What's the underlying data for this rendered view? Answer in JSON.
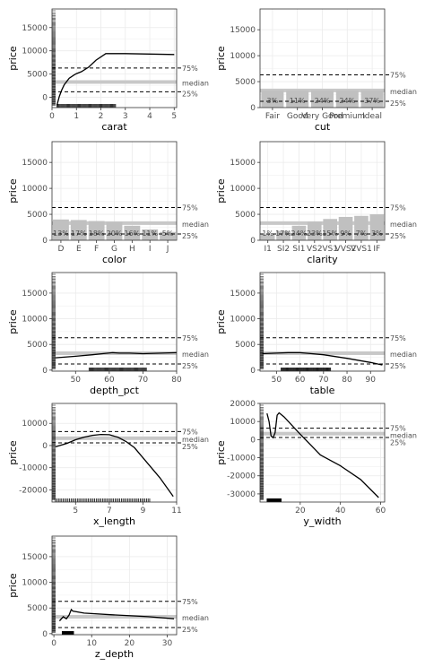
{
  "colors": {
    "panel_border": "#333333",
    "grid": "#ebebeb",
    "bar": "#c0c0c0",
    "median_band": "#c8c8c8",
    "line": "#000000"
  },
  "chart_data": [
    {
      "id": "carat",
      "type": "line",
      "xlabel": "carat",
      "ylabel": "price",
      "xlim": [
        0,
        5.1
      ],
      "ylim": [
        -2200,
        19000
      ],
      "xticks": [
        0,
        1,
        2,
        3,
        4,
        5
      ],
      "yticks": [
        0,
        5000,
        10000,
        15000
      ],
      "x": [
        0.2,
        0.3,
        0.4,
        0.5,
        0.7,
        0.9,
        1.0,
        1.2,
        1.5,
        1.8,
        2.2,
        3.0,
        4.0,
        5.0
      ],
      "y": [
        -1700,
        200,
        1600,
        2700,
        4100,
        4800,
        5100,
        5500,
        6500,
        8000,
        9400,
        9400,
        9300,
        9200
      ],
      "ref": {
        "p75": 6300,
        "median": 3300,
        "p25": 1200
      },
      "rug_y": true,
      "rug_x": [
        0.2,
        2.6
      ]
    },
    {
      "id": "cut",
      "type": "bar",
      "xlabel": "cut",
      "ylabel": "price",
      "ylim": [
        0,
        19000
      ],
      "yticks": [
        0,
        5000,
        10000,
        15000
      ],
      "categories": [
        "Fair",
        "Good",
        "Very Good",
        "Premium",
        "Ideal"
      ],
      "values": [
        3300,
        3300,
        3300,
        3300,
        3300
      ],
      "bar_labels": [
        "3%",
        "11%",
        "24%",
        "24%",
        "37%"
      ],
      "ref": {
        "p75": 6300,
        "median": 3300,
        "p25": 1200
      }
    },
    {
      "id": "color",
      "type": "bar",
      "xlabel": "color",
      "ylabel": "price",
      "ylim": [
        0,
        19000
      ],
      "yticks": [
        0,
        5000,
        10000,
        15000
      ],
      "categories": [
        "D",
        "E",
        "F",
        "G",
        "H",
        "I",
        "J"
      ],
      "values": [
        4000,
        3900,
        3700,
        3500,
        2800,
        2100,
        1600
      ],
      "bar_labels": [
        "13%",
        "17%",
        "18%",
        "20%",
        "16%",
        "11%",
        "5%"
      ],
      "ref": {
        "p75": 6300,
        "median": 3300,
        "p25": 1200
      }
    },
    {
      "id": "clarity",
      "type": "bar",
      "xlabel": "clarity",
      "ylabel": "price",
      "ylim": [
        0,
        19000
      ],
      "yticks": [
        0,
        5000,
        10000,
        15000
      ],
      "categories": [
        "I1",
        "SI2",
        "SI1",
        "VS2",
        "VS1",
        "VVS2",
        "VVS1",
        "IF"
      ],
      "values": [
        1100,
        1800,
        2800,
        3600,
        4100,
        4500,
        4700,
        5000
      ],
      "bar_labels": [
        "1%",
        "17%",
        "24%",
        "23%",
        "15%",
        "9%",
        "7%",
        "3%"
      ],
      "ref": {
        "p75": 6300,
        "median": 3300,
        "p25": 1200
      }
    },
    {
      "id": "depth_pct",
      "type": "line",
      "xlabel": "depth_pct",
      "ylabel": "price",
      "xlim": [
        43,
        80
      ],
      "ylim": [
        -200,
        19000
      ],
      "xticks": [
        50,
        60,
        70,
        80
      ],
      "yticks": [
        0,
        5000,
        10000,
        15000
      ],
      "x": [
        44,
        50,
        55,
        58,
        61,
        63,
        66,
        70,
        80
      ],
      "y": [
        2400,
        2700,
        3000,
        3200,
        3400,
        3300,
        3300,
        3200,
        3400
      ],
      "ref": {
        "p75": 6300,
        "median": 3300,
        "p25": 1200
      },
      "rug_y": true,
      "rug_x": [
        54,
        71
      ]
    },
    {
      "id": "table",
      "type": "line",
      "xlabel": "table",
      "ylabel": "price",
      "xlim": [
        43,
        96
      ],
      "ylim": [
        -200,
        19000
      ],
      "xticks": [
        50,
        60,
        70,
        80,
        90
      ],
      "yticks": [
        0,
        5000,
        10000,
        15000
      ],
      "x": [
        44,
        50,
        55,
        60,
        65,
        70,
        80,
        90,
        95
      ],
      "y": [
        3200,
        3300,
        3400,
        3400,
        3200,
        3000,
        2300,
        1500,
        1000
      ],
      "ref": {
        "p75": 6300,
        "median": 3300,
        "p25": 1200
      },
      "rug_y": true,
      "rug_x": [
        52,
        73
      ]
    },
    {
      "id": "x_length",
      "type": "line",
      "xlabel": "x_length",
      "ylabel": "price",
      "xlim": [
        3.6,
        11
      ],
      "ylim": [
        -25500,
        19000
      ],
      "xticks": [
        5,
        7,
        9,
        11
      ],
      "yticks": [
        -20000,
        -10000,
        0,
        10000
      ],
      "x": [
        3.8,
        4.5,
        5.0,
        5.5,
        6.0,
        6.5,
        7.0,
        7.5,
        8.0,
        8.5,
        9.0,
        10.0,
        10.8
      ],
      "y": [
        -600,
        1000,
        2600,
        3800,
        4600,
        5000,
        4900,
        3800,
        1800,
        -1000,
        -5500,
        -14500,
        -23000
      ],
      "ref": {
        "p75": 6300,
        "median": 3300,
        "p25": 1200
      },
      "rug_y": true,
      "rug_x": [
        3.8,
        9.4
      ]
    },
    {
      "id": "y_width",
      "type": "line",
      "xlabel": "y_width",
      "ylabel": "price",
      "xlim": [
        0,
        62
      ],
      "ylim": [
        -34500,
        20000
      ],
      "xticks": [
        20,
        40,
        60
      ],
      "yticks": [
        -30000,
        -20000,
        -10000,
        0,
        10000,
        20000
      ],
      "x": [
        3.5,
        4.5,
        5.5,
        6.5,
        7.5,
        8.5,
        9.5,
        12,
        20,
        30,
        40,
        50,
        59
      ],
      "y": [
        14500,
        10000,
        2000,
        1000,
        3800,
        13500,
        14800,
        12500,
        3000,
        -8500,
        -14500,
        -22000,
        -32000
      ],
      "ref": {
        "p75": 6300,
        "median": 3300,
        "p25": 1200
      },
      "rug_y": true,
      "rug_x": [
        3.5,
        10.5
      ]
    },
    {
      "id": "z_depth",
      "type": "line",
      "xlabel": "z_depth",
      "ylabel": "price",
      "xlim": [
        -0.5,
        32.5
      ],
      "ylim": [
        -200,
        19000
      ],
      "xticks": [
        0,
        10,
        20,
        30
      ],
      "yticks": [
        0,
        5000,
        10000,
        15000
      ],
      "x": [
        1.5,
        2.5,
        3.3,
        4.0,
        4.6,
        5.0,
        8,
        15,
        25,
        31.8
      ],
      "y": [
        2500,
        3300,
        2900,
        3600,
        4700,
        4400,
        4000,
        3700,
        3300,
        2900
      ],
      "ref": {
        "p75": 6300,
        "median": 3300,
        "p25": 1200
      },
      "rug_y": true,
      "rug_x": [
        2.2,
        5.2
      ]
    }
  ],
  "ref_labels": {
    "p75": "75%",
    "median": "median",
    "p25": "25%"
  }
}
